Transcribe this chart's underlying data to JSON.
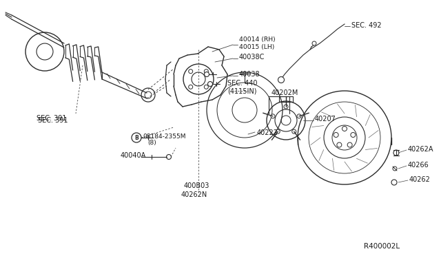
{
  "bg_color": "#ffffff",
  "line_color": "#2a2a2a",
  "label_color": "#1a1a1a",
  "fig_ref": "R400002L",
  "labels": {
    "SEC391": "SEC. 391",
    "SEC492": "SEC. 492",
    "SEC440": "SEC. 440\n(4115IN)",
    "p40014": "40014 (RH)\n40015 (LH)",
    "p40038C": "40038C",
    "p40038": "40038",
    "p40202M": "40202M",
    "p40222": "40222",
    "p40207": "40207",
    "p40262A": "40262A",
    "p40266": "40266",
    "p40262": "40262",
    "p40262N": "40262N",
    "p400B03": "400B03",
    "p40040A": "40040A",
    "bolt_label": "08184-2355M",
    "bolt_sub": "(8)"
  },
  "title_fontsize": 8,
  "label_fontsize": 7
}
